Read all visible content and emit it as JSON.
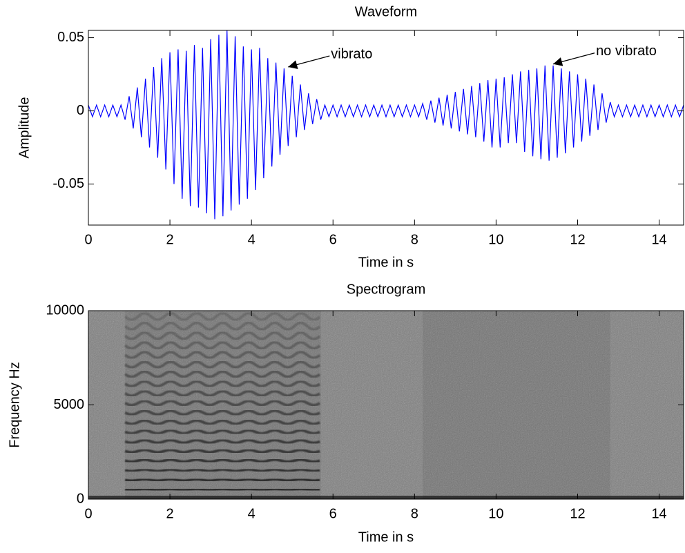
{
  "chart_data": [
    {
      "type": "line",
      "title": "Waveform",
      "xlabel": "Time in s",
      "ylabel": "Amplitude",
      "color": "#0000ff",
      "xlim": [
        0,
        14.6
      ],
      "xticks": [
        0,
        2,
        4,
        6,
        8,
        10,
        12,
        14
      ],
      "ylim": [
        -0.078,
        0.055
      ],
      "yticks": [
        -0.05,
        0,
        0.05
      ],
      "x": [
        0,
        0.1,
        0.2,
        0.3,
        0.4,
        0.5,
        0.6,
        0.7,
        0.8,
        0.9,
        1,
        1.1,
        1.2,
        1.3,
        1.4,
        1.5,
        1.6,
        1.7,
        1.8,
        1.9,
        2,
        2.1,
        2.2,
        2.3,
        2.4,
        2.5,
        2.6,
        2.7,
        2.8,
        2.9,
        3,
        3.1,
        3.2,
        3.3,
        3.4,
        3.5,
        3.6,
        3.7,
        3.8,
        3.9,
        4,
        4.1,
        4.2,
        4.3,
        4.4,
        4.5,
        4.6,
        4.7,
        4.8,
        4.9,
        5,
        5.1,
        5.2,
        5.3,
        5.4,
        5.5,
        5.6,
        5.7,
        5.8,
        5.9,
        6,
        6.1,
        6.2,
        6.3,
        6.4,
        6.5,
        6.6,
        6.7,
        6.8,
        6.9,
        7,
        7.1,
        7.2,
        7.3,
        7.4,
        7.5,
        7.6,
        7.7,
        7.8,
        7.9,
        8,
        8.1,
        8.2,
        8.3,
        8.4,
        8.5,
        8.6,
        8.7,
        8.8,
        8.9,
        9,
        9.1,
        9.2,
        9.3,
        9.4,
        9.5,
        9.6,
        9.7,
        9.8,
        9.9,
        10,
        10.1,
        10.2,
        10.3,
        10.4,
        10.5,
        10.6,
        10.7,
        10.8,
        10.9,
        11,
        11.1,
        11.2,
        11.3,
        11.4,
        11.5,
        11.6,
        11.7,
        11.8,
        11.9,
        12,
        12.1,
        12.2,
        12.3,
        12.4,
        12.5,
        12.6,
        12.7,
        12.8,
        12.9,
        13,
        13.1,
        13.2,
        13.3,
        13.4,
        13.5,
        13.6,
        13.7,
        13.8,
        13.9,
        14,
        14.1,
        14.2,
        14.3,
        14.4,
        14.5,
        14.6
      ],
      "values": [
        0.004,
        -0.004,
        0.004,
        -0.004,
        0.004,
        -0.004,
        0.004,
        -0.004,
        0.004,
        -0.006,
        0.01,
        -0.012,
        0.016,
        -0.018,
        0.022,
        -0.025,
        0.03,
        -0.032,
        0.036,
        -0.04,
        0.04,
        -0.05,
        0.042,
        -0.06,
        0.041,
        -0.065,
        0.045,
        -0.066,
        0.043,
        -0.07,
        0.049,
        -0.074,
        0.052,
        -0.072,
        0.055,
        -0.068,
        0.051,
        -0.064,
        0.044,
        -0.06,
        0.042,
        -0.054,
        0.043,
        -0.046,
        0.036,
        -0.038,
        0.033,
        -0.03,
        0.029,
        -0.024,
        0.024,
        -0.018,
        0.018,
        -0.013,
        0.012,
        -0.009,
        0.008,
        -0.006,
        0.004,
        -0.004,
        0.004,
        -0.004,
        0.004,
        -0.004,
        0.004,
        -0.004,
        0.004,
        -0.004,
        0.004,
        -0.004,
        0.004,
        -0.004,
        0.004,
        -0.004,
        0.004,
        -0.004,
        0.004,
        -0.004,
        0.004,
        -0.004,
        0.004,
        -0.004,
        0.005,
        -0.006,
        0.007,
        -0.008,
        0.009,
        -0.01,
        0.011,
        -0.012,
        0.013,
        -0.014,
        0.015,
        -0.016,
        0.017,
        -0.018,
        0.019,
        -0.021,
        0.021,
        -0.025,
        0.022,
        -0.025,
        0.023,
        -0.022,
        0.025,
        -0.022,
        0.027,
        -0.028,
        0.028,
        -0.031,
        0.029,
        -0.033,
        0.031,
        -0.034,
        0.031,
        -0.032,
        0.029,
        -0.029,
        0.027,
        -0.025,
        0.025,
        -0.021,
        0.022,
        -0.017,
        0.018,
        -0.013,
        0.012,
        -0.008,
        0.006,
        -0.004,
        0.004,
        -0.004,
        0.004,
        -0.004,
        0.004,
        -0.004,
        0.004,
        -0.004,
        0.004,
        -0.004,
        0.004,
        -0.004,
        0.004,
        -0.004,
        0.004,
        -0.004,
        0.004
      ],
      "annotations": [
        {
          "text": "vibrato",
          "x": 4.9,
          "y": 0.03
        },
        {
          "text": "no vibrato",
          "x": 11.4,
          "y": 0.032
        }
      ]
    },
    {
      "type": "spectrogram",
      "title": "Spectrogram",
      "xlabel": "Time in s",
      "ylabel": "Frequency Hz",
      "xlim": [
        0,
        14.6
      ],
      "xticks": [
        0,
        2,
        4,
        6,
        8,
        10,
        12,
        14
      ],
      "ylim": [
        0,
        10000
      ],
      "yticks": [
        0,
        5000,
        10000
      ],
      "notes": [
        {
          "start": 0.9,
          "end": 5.7,
          "f0": 510,
          "vibrato": true
        },
        {
          "start": 8.2,
          "end": 12.8,
          "f0": 510,
          "vibrato": false
        }
      ]
    }
  ]
}
